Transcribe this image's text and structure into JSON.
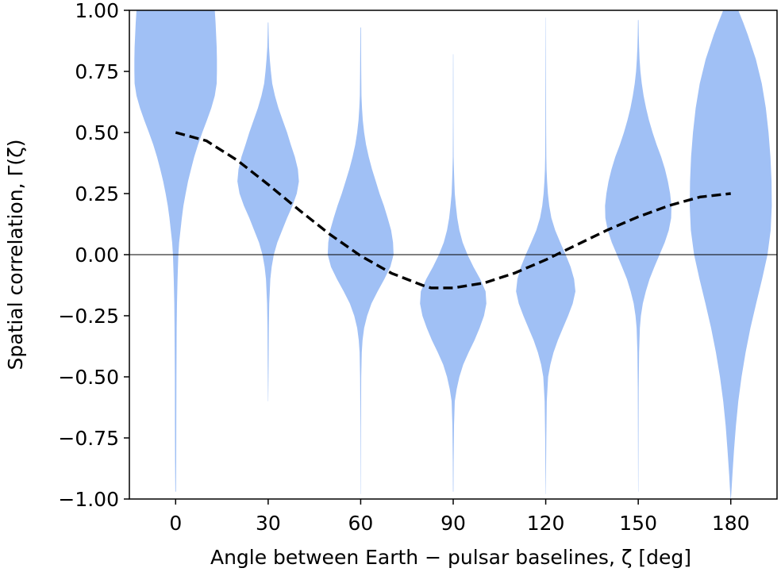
{
  "chart_data": {
    "type": "violin",
    "xlabel": "Angle between Earth − pulsar baselines,  ζ [deg]",
    "ylabel": "Spatial correlation,  Γ(ζ)",
    "xlim": [
      -15,
      195
    ],
    "ylim": [
      -1.0,
      1.0
    ],
    "x_ticks": [
      {
        "value": 0,
        "label": "0"
      },
      {
        "value": 30,
        "label": "30"
      },
      {
        "value": 60,
        "label": "60"
      },
      {
        "value": 90,
        "label": "90"
      },
      {
        "value": 120,
        "label": "120"
      },
      {
        "value": 150,
        "label": "150"
      },
      {
        "value": 180,
        "label": "180"
      }
    ],
    "y_ticks": [
      {
        "value": 1.0,
        "label": "1.00"
      },
      {
        "value": 0.75,
        "label": "0.75"
      },
      {
        "value": 0.5,
        "label": "0.50"
      },
      {
        "value": 0.25,
        "label": "0.25"
      },
      {
        "value": 0.0,
        "label": "0.00"
      },
      {
        "value": -0.25,
        "label": "−0.25"
      },
      {
        "value": -0.5,
        "label": "−0.50"
      },
      {
        "value": -0.75,
        "label": "−0.75"
      },
      {
        "value": -1.0,
        "label": "−1.00"
      }
    ],
    "reference_line_y": 0,
    "colors": {
      "violin_fill": "#a0c0f5",
      "curve": "#000000",
      "zero_line": "#000000",
      "axes": "#000000"
    },
    "violins": [
      {
        "angle": 0,
        "profile": [
          [
            1.0,
            14.5
          ],
          [
            0.95,
            14.8
          ],
          [
            0.9,
            15.0
          ],
          [
            0.85,
            15.2
          ],
          [
            0.8,
            15.3
          ],
          [
            0.75,
            15.3
          ],
          [
            0.7,
            15.2
          ],
          [
            0.65,
            14.5
          ],
          [
            0.6,
            13.2
          ],
          [
            0.55,
            11.6
          ],
          [
            0.5,
            9.9
          ],
          [
            0.45,
            8.3
          ],
          [
            0.4,
            6.9
          ],
          [
            0.35,
            5.7
          ],
          [
            0.3,
            4.6
          ],
          [
            0.25,
            3.7
          ],
          [
            0.2,
            2.9
          ],
          [
            0.15,
            2.3
          ],
          [
            0.1,
            1.8
          ],
          [
            0.05,
            1.3
          ],
          [
            0.0,
            1.0
          ],
          [
            -0.1,
            0.7
          ],
          [
            -0.2,
            0.5
          ],
          [
            -0.3,
            0.4
          ],
          [
            -0.5,
            0.3
          ],
          [
            -0.7,
            0.25
          ],
          [
            -0.85,
            0.2
          ],
          [
            -0.97,
            0.12
          ]
        ]
      },
      {
        "angle": 30,
        "profile": [
          [
            0.95,
            0.1
          ],
          [
            0.9,
            0.2
          ],
          [
            0.85,
            0.3
          ],
          [
            0.8,
            0.6
          ],
          [
            0.75,
            1.0
          ],
          [
            0.7,
            1.5
          ],
          [
            0.65,
            2.5
          ],
          [
            0.6,
            3.8
          ],
          [
            0.55,
            5.4
          ],
          [
            0.5,
            7.0
          ],
          [
            0.45,
            8.4
          ],
          [
            0.4,
            9.9
          ],
          [
            0.35,
            11.0
          ],
          [
            0.3,
            11.4
          ],
          [
            0.25,
            10.6
          ],
          [
            0.2,
            9.0
          ],
          [
            0.15,
            7.0
          ],
          [
            0.1,
            5.2
          ],
          [
            0.05,
            3.4
          ],
          [
            0.0,
            2.1
          ],
          [
            -0.05,
            1.3
          ],
          [
            -0.1,
            0.8
          ],
          [
            -0.2,
            0.4
          ],
          [
            -0.3,
            0.25
          ],
          [
            -0.45,
            0.15
          ],
          [
            -0.6,
            0.05
          ]
        ]
      },
      {
        "angle": 60,
        "profile": [
          [
            0.93,
            0.1
          ],
          [
            0.85,
            0.15
          ],
          [
            0.75,
            0.2
          ],
          [
            0.65,
            0.3
          ],
          [
            0.6,
            0.5
          ],
          [
            0.55,
            0.8
          ],
          [
            0.5,
            1.3
          ],
          [
            0.45,
            2.0
          ],
          [
            0.4,
            3.0
          ],
          [
            0.35,
            4.2
          ],
          [
            0.3,
            5.6
          ],
          [
            0.25,
            7.0
          ],
          [
            0.2,
            8.6
          ],
          [
            0.15,
            10.0
          ],
          [
            0.1,
            11.3
          ],
          [
            0.05,
            12.0
          ],
          [
            0.0,
            12.2
          ],
          [
            -0.05,
            11.0
          ],
          [
            -0.1,
            8.8
          ],
          [
            -0.15,
            6.3
          ],
          [
            -0.2,
            4.0
          ],
          [
            -0.25,
            2.4
          ],
          [
            -0.3,
            1.3
          ],
          [
            -0.35,
            0.7
          ],
          [
            -0.4,
            0.4
          ],
          [
            -0.5,
            0.2
          ],
          [
            -0.7,
            0.1
          ],
          [
            -0.98,
            0.05
          ]
        ]
      },
      {
        "angle": 90,
        "profile": [
          [
            0.82,
            0.05
          ],
          [
            0.7,
            0.08
          ],
          [
            0.55,
            0.1
          ],
          [
            0.4,
            0.15
          ],
          [
            0.35,
            0.25
          ],
          [
            0.3,
            0.4
          ],
          [
            0.25,
            0.6
          ],
          [
            0.2,
            1.0
          ],
          [
            0.15,
            1.5
          ],
          [
            0.1,
            2.3
          ],
          [
            0.05,
            3.5
          ],
          [
            0.0,
            5.3
          ],
          [
            -0.05,
            7.5
          ],
          [
            -0.1,
            10.0
          ],
          [
            -0.15,
            12.0
          ],
          [
            -0.2,
            12.3
          ],
          [
            -0.25,
            11.4
          ],
          [
            -0.3,
            9.8
          ],
          [
            -0.35,
            7.9
          ],
          [
            -0.4,
            5.7
          ],
          [
            -0.45,
            3.7
          ],
          [
            -0.5,
            2.3
          ],
          [
            -0.55,
            1.3
          ],
          [
            -0.6,
            0.6
          ],
          [
            -0.7,
            0.3
          ],
          [
            -0.85,
            0.15
          ],
          [
            -0.97,
            0.1
          ]
        ]
      },
      {
        "angle": 120,
        "profile": [
          [
            0.97,
            0.05
          ],
          [
            0.85,
            0.08
          ],
          [
            0.7,
            0.1
          ],
          [
            0.5,
            0.15
          ],
          [
            0.4,
            0.2
          ],
          [
            0.35,
            0.3
          ],
          [
            0.3,
            0.5
          ],
          [
            0.25,
            0.8
          ],
          [
            0.2,
            1.3
          ],
          [
            0.15,
            2.1
          ],
          [
            0.1,
            3.5
          ],
          [
            0.05,
            5.4
          ],
          [
            0.0,
            7.4
          ],
          [
            -0.05,
            9.2
          ],
          [
            -0.1,
            10.5
          ],
          [
            -0.15,
            11.0
          ],
          [
            -0.2,
            10.0
          ],
          [
            -0.25,
            8.3
          ],
          [
            -0.3,
            6.4
          ],
          [
            -0.35,
            4.5
          ],
          [
            -0.4,
            2.9
          ],
          [
            -0.45,
            1.7
          ],
          [
            -0.5,
            0.9
          ],
          [
            -0.6,
            0.4
          ],
          [
            -0.75,
            0.2
          ],
          [
            -0.9,
            0.1
          ],
          [
            -0.98,
            0.05
          ]
        ]
      },
      {
        "angle": 150,
        "profile": [
          [
            0.96,
            0.1
          ],
          [
            0.9,
            0.2
          ],
          [
            0.85,
            0.3
          ],
          [
            0.8,
            0.5
          ],
          [
            0.75,
            0.8
          ],
          [
            0.7,
            1.3
          ],
          [
            0.65,
            2.0
          ],
          [
            0.6,
            2.9
          ],
          [
            0.55,
            4.0
          ],
          [
            0.5,
            5.3
          ],
          [
            0.45,
            6.8
          ],
          [
            0.4,
            8.5
          ],
          [
            0.35,
            9.9
          ],
          [
            0.3,
            11.0
          ],
          [
            0.25,
            11.8
          ],
          [
            0.2,
            12.3
          ],
          [
            0.15,
            12.2
          ],
          [
            0.1,
            11.3
          ],
          [
            0.05,
            9.8
          ],
          [
            0.0,
            7.9
          ],
          [
            -0.05,
            6.0
          ],
          [
            -0.1,
            4.2
          ],
          [
            -0.15,
            2.8
          ],
          [
            -0.2,
            1.7
          ],
          [
            -0.25,
            1.0
          ],
          [
            -0.3,
            0.6
          ],
          [
            -0.4,
            0.3
          ],
          [
            -0.55,
            0.15
          ],
          [
            -0.75,
            0.1
          ],
          [
            -0.97,
            0.05
          ]
        ]
      },
      {
        "angle": 180,
        "profile": [
          [
            1.0,
            2.8
          ],
          [
            0.95,
            4.6
          ],
          [
            0.9,
            6.3
          ],
          [
            0.85,
            7.8
          ],
          [
            0.8,
            9.3
          ],
          [
            0.7,
            11.5
          ],
          [
            0.6,
            13.0
          ],
          [
            0.5,
            14.0
          ],
          [
            0.4,
            14.7
          ],
          [
            0.3,
            15.1
          ],
          [
            0.2,
            15.2
          ],
          [
            0.1,
            14.8
          ],
          [
            0.0,
            13.6
          ],
          [
            -0.1,
            11.6
          ],
          [
            -0.2,
            9.4
          ],
          [
            -0.3,
            7.3
          ],
          [
            -0.4,
            5.5
          ],
          [
            -0.5,
            4.0
          ],
          [
            -0.6,
            2.8
          ],
          [
            -0.7,
            1.9
          ],
          [
            -0.8,
            1.2
          ],
          [
            -0.9,
            0.6
          ],
          [
            -0.96,
            0.3
          ],
          [
            -1.0,
            0.05
          ]
        ]
      }
    ],
    "curve": {
      "style": "dashed",
      "x": [
        0,
        10,
        20,
        30,
        40,
        50,
        60,
        70,
        80,
        82.8,
        90,
        100,
        110,
        120,
        130,
        140,
        150,
        160,
        170,
        180
      ],
      "y": [
        0.5,
        0.466,
        0.386,
        0.287,
        0.183,
        0.083,
        -0.005,
        -0.076,
        -0.125,
        -0.136,
        -0.136,
        -0.116,
        -0.075,
        -0.021,
        0.04,
        0.101,
        0.155,
        0.201,
        0.236,
        0.25
      ]
    }
  }
}
